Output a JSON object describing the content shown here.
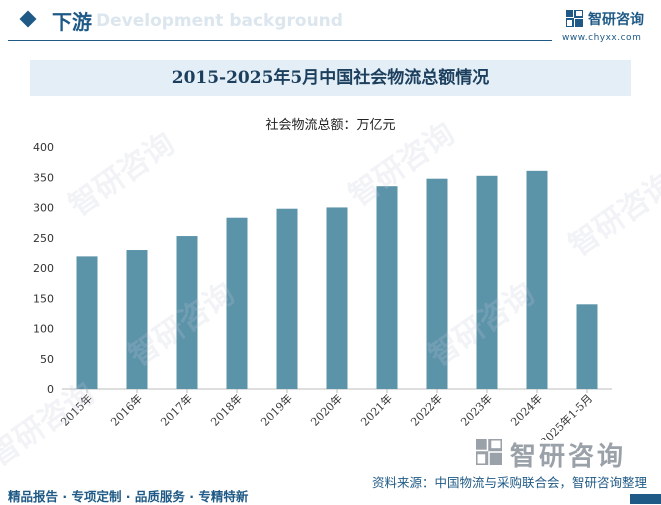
{
  "header": {
    "section_title": "下游",
    "section_ghost": "Development background",
    "brand_name": "智研咨询",
    "brand_url": "www.chyxx.com"
  },
  "watermark_text": "智研咨询",
  "colors": {
    "bar": "#5b93a9",
    "brand": "#1f5a86",
    "title_band": "#e3eef6"
  },
  "chart_data": {
    "type": "bar",
    "title": "2015-2025年5月中国社会物流总额情况",
    "unit_label": "社会物流总额：万亿元",
    "categories": [
      "2015年",
      "2016年",
      "2017年",
      "2018年",
      "2019年",
      "2020年",
      "2021年",
      "2022年",
      "2023年",
      "2024年",
      "2025年1-5月"
    ],
    "values": [
      219.2,
      229.7,
      252.8,
      283.1,
      298.0,
      300.1,
      335.2,
      347.6,
      352.4,
      360.6,
      140.0
    ],
    "ylim": [
      0,
      400
    ],
    "yticks": [
      0,
      50,
      100,
      150,
      200,
      250,
      300,
      350,
      400
    ],
    "xlabel": "",
    "ylabel": "",
    "grid": false
  },
  "footer": {
    "brand": "智研咨询",
    "source": "资料来源：中国物流与采购联合会，智研咨询整理",
    "tags": "精品报告 · 专项定制 · 品质服务 · 专精特新"
  }
}
